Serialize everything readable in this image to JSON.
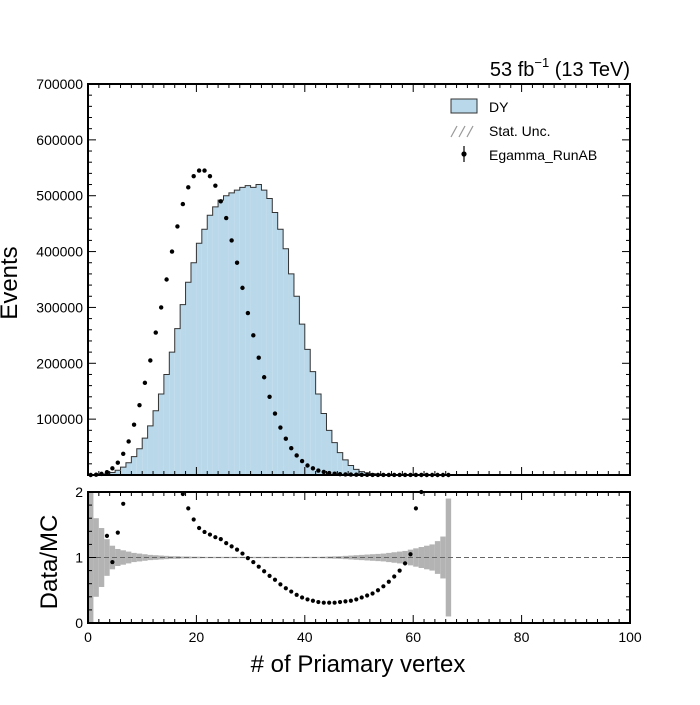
{
  "chart_data": [
    {
      "type": "bar",
      "panel": "main",
      "xlabel": "",
      "ylabel": "Events",
      "xlim": [
        0,
        100
      ],
      "ylim": [
        0,
        700000
      ],
      "yticks": [
        100000,
        200000,
        300000,
        400000,
        500000,
        600000,
        700000
      ],
      "ytick_labels": [
        "100000",
        "200000",
        "300000",
        "400000",
        "500000",
        "600000",
        "700000"
      ],
      "lumi_text": {
        "base": "53 fb",
        "sup": "−1",
        "tail": " (13 TeV)"
      },
      "legend_position": "top-right",
      "legend": [
        "DY",
        "Stat. Unc.",
        "Egamma_RunAB"
      ],
      "x": [
        0,
        1,
        2,
        3,
        4,
        5,
        6,
        7,
        8,
        9,
        10,
        11,
        12,
        13,
        14,
        15,
        16,
        17,
        18,
        19,
        20,
        21,
        22,
        23,
        24,
        25,
        26,
        27,
        28,
        29,
        30,
        31,
        32,
        33,
        34,
        35,
        36,
        37,
        38,
        39,
        40,
        41,
        42,
        43,
        44,
        45,
        46,
        47,
        48,
        49,
        50,
        51,
        52,
        53,
        54,
        55,
        56,
        57,
        58,
        59,
        60,
        61,
        62,
        63,
        64,
        65,
        66
      ],
      "series": [
        {
          "name": "DY",
          "style": "step-filled",
          "color": "#b9d8ea",
          "edge_color": "#333333",
          "values": [
            0,
            200,
            800,
            2000,
            4500,
            8500,
            14000,
            22000,
            33000,
            47000,
            66000,
            88000,
            115000,
            145000,
            180000,
            220000,
            262000,
            305000,
            345000,
            380000,
            415000,
            440000,
            465000,
            480000,
            492000,
            500000,
            505000,
            510000,
            515000,
            518000,
            515000,
            520000,
            510000,
            495000,
            470000,
            440000,
            405000,
            360000,
            320000,
            270000,
            225000,
            185000,
            145000,
            110000,
            80000,
            58000,
            40000,
            27000,
            17000,
            10000,
            6000,
            4000,
            2500,
            1500,
            900,
            500,
            300,
            200,
            120,
            80,
            60,
            40,
            30,
            20,
            10,
            5,
            2
          ]
        },
        {
          "name": "Egamma_RunAB",
          "style": "points",
          "color": "#000000",
          "values": [
            0,
            500,
            2000,
            5000,
            12000,
            22000,
            38000,
            60000,
            90000,
            125000,
            165000,
            205000,
            255000,
            300000,
            350000,
            400000,
            445000,
            485000,
            515000,
            535000,
            545000,
            545000,
            535000,
            518000,
            490000,
            460000,
            420000,
            380000,
            335000,
            290000,
            250000,
            210000,
            175000,
            140000,
            110000,
            85000,
            65000,
            48000,
            35000,
            25000,
            17000,
            12000,
            8000,
            5500,
            3500,
            2300,
            1500,
            1000,
            700,
            500,
            350,
            250,
            180,
            130,
            100,
            80,
            60,
            50,
            40,
            30,
            25,
            20,
            15,
            10,
            8,
            5,
            3
          ]
        }
      ]
    },
    {
      "type": "scatter",
      "panel": "ratio",
      "xlabel": "# of Priamary vertex",
      "ylabel": "Data/MC",
      "xlim": [
        0,
        100
      ],
      "ylim": [
        0,
        2
      ],
      "xticks": [
        0,
        20,
        40,
        60,
        80,
        100
      ],
      "xtick_labels": [
        "0",
        "20",
        "40",
        "60",
        "80",
        "100"
      ],
      "yticks": [
        0,
        1,
        2
      ],
      "ytick_labels": [
        "0",
        "1",
        "2"
      ],
      "reference_line": 1,
      "ratio_points": {
        "x": [
          3,
          4,
          5,
          6,
          17,
          18,
          19,
          20,
          21,
          22,
          23,
          24,
          25,
          26,
          27,
          28,
          29,
          30,
          31,
          32,
          33,
          34,
          35,
          36,
          37,
          38,
          39,
          40,
          41,
          42,
          43,
          44,
          45,
          46,
          47,
          48,
          49,
          50,
          51,
          52,
          53,
          54,
          55,
          56,
          57,
          58,
          59,
          60,
          61
        ],
        "y": [
          1.33,
          0.93,
          1.38,
          1.82,
          1.97,
          1.75,
          1.58,
          1.45,
          1.39,
          1.35,
          1.31,
          1.28,
          1.22,
          1.17,
          1.12,
          1.06,
          0.99,
          0.93,
          0.86,
          0.79,
          0.72,
          0.66,
          0.59,
          0.53,
          0.48,
          0.43,
          0.39,
          0.36,
          0.34,
          0.32,
          0.31,
          0.31,
          0.31,
          0.32,
          0.33,
          0.34,
          0.36,
          0.39,
          0.42,
          0.45,
          0.5,
          0.56,
          0.63,
          0.71,
          0.8,
          0.91,
          1.05,
          1.75,
          2.0
        ]
      },
      "stat_unc": {
        "color": "#b3b3b3",
        "x": [
          0,
          1,
          2,
          3,
          4,
          5,
          6,
          7,
          8,
          9,
          10,
          11,
          12,
          13,
          14,
          15,
          16,
          17,
          18,
          19,
          20,
          21,
          22,
          23,
          24,
          25,
          26,
          27,
          28,
          29,
          30,
          31,
          32,
          33,
          34,
          35,
          36,
          37,
          38,
          39,
          40,
          41,
          42,
          43,
          44,
          45,
          46,
          47,
          48,
          49,
          50,
          51,
          52,
          53,
          54,
          55,
          56,
          57,
          58,
          59,
          60,
          61,
          62,
          63,
          64,
          65,
          66
        ],
        "half_width": [
          1.0,
          0.6,
          0.45,
          0.28,
          0.18,
          0.13,
          0.11,
          0.09,
          0.07,
          0.06,
          0.05,
          0.04,
          0.035,
          0.03,
          0.025,
          0.02,
          0.02,
          0.015,
          0.015,
          0.012,
          0.012,
          0.01,
          0.01,
          0.01,
          0.01,
          0.01,
          0.01,
          0.01,
          0.01,
          0.01,
          0.01,
          0.01,
          0.01,
          0.01,
          0.01,
          0.01,
          0.01,
          0.01,
          0.01,
          0.01,
          0.01,
          0.01,
          0.01,
          0.012,
          0.015,
          0.018,
          0.02,
          0.025,
          0.03,
          0.035,
          0.04,
          0.045,
          0.05,
          0.055,
          0.06,
          0.07,
          0.08,
          0.09,
          0.1,
          0.12,
          0.14,
          0.16,
          0.18,
          0.2,
          0.25,
          0.32,
          0.9
        ]
      }
    }
  ]
}
